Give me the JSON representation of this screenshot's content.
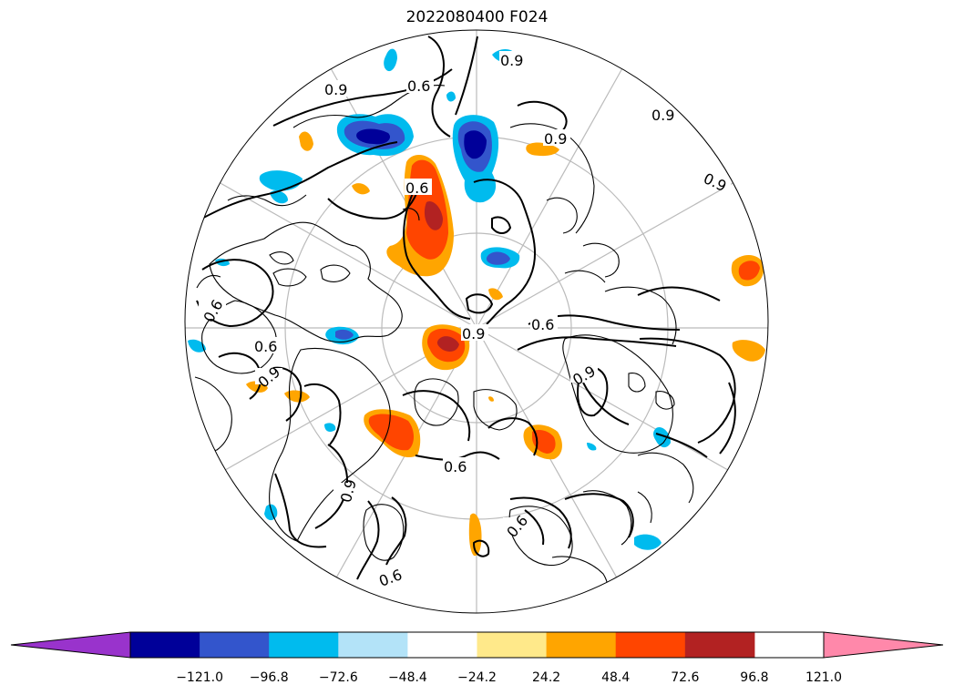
{
  "title": "2022080400 F024",
  "contour_labels": [
    "0.9",
    "0.6",
    "0.9",
    "0.9",
    "0.9",
    "0.6",
    "0.9",
    "0.6",
    "0.9",
    "0.6",
    "0.9",
    "0.6",
    "0.9",
    "0.6",
    "0.6",
    "0.9",
    "0.6"
  ],
  "colorbar": {
    "colors": [
      "#9933cc",
      "#000099",
      "#3355cc",
      "#00bbee",
      "#b3e3f8",
      "#ffffff",
      "#ffe98a",
      "#ffa500",
      "#ff4500",
      "#b22222",
      "#ff88aa"
    ],
    "ticks": [
      "−121.0",
      "−96.8",
      "−72.6",
      "−48.4",
      "−24.2",
      "24.2",
      "48.4",
      "72.6",
      "96.8",
      "121.0"
    ],
    "extend": "both"
  },
  "colors": {
    "coastline": "#000000",
    "contour": "#000000",
    "graticule": "#bbbbbb"
  }
}
